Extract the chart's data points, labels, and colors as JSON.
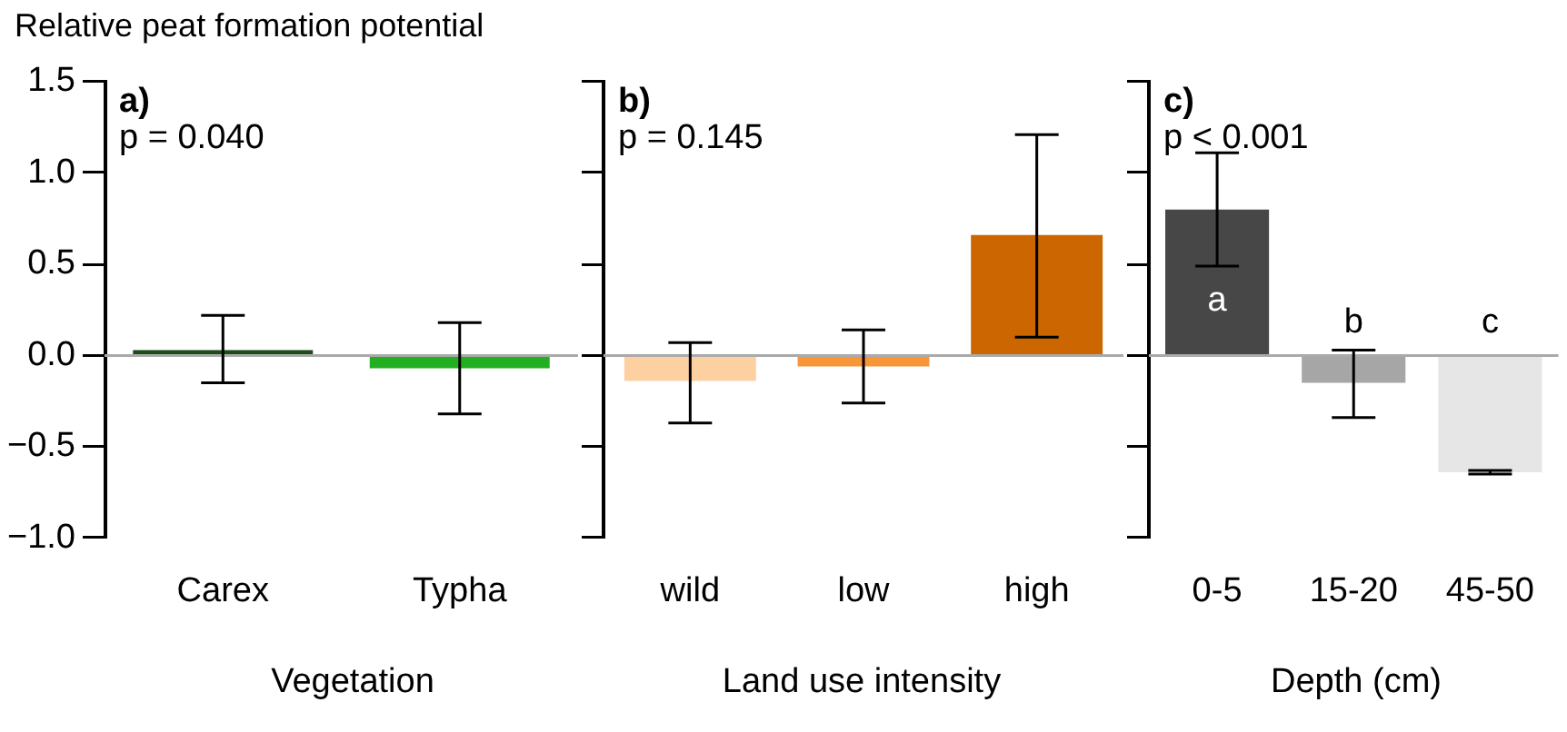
{
  "chart_data": [
    {
      "type": "bar",
      "ylabel": "Relative peat formation potential",
      "xlabel": "Vegetation",
      "categories": [
        "Carex",
        "Typha"
      ],
      "values": [
        0.03,
        -0.07
      ],
      "colors": [
        "#1b4d1b",
        "#22b022"
      ],
      "errors": [
        [
          -0.15,
          0.22
        ],
        [
          -0.32,
          0.18
        ]
      ],
      "ylim": [
        -1,
        1.5
      ],
      "yticks": [
        {
          "value": -1,
          "label": "−1.0"
        },
        {
          "value": -0.5,
          "label": "−0.5"
        },
        {
          "value": 0,
          "label": "0.0"
        },
        0.5,
        {
          "value": 1,
          "label": "1.0"
        },
        1.5
      ],
      "ref_lines": [
        {
          "axis": "y",
          "value": 0,
          "color": "#aaaaaa"
        }
      ],
      "annotations": [
        "a)",
        "p = 0.040"
      ],
      "grid": false,
      "legend": false
    },
    {
      "type": "bar",
      "xlabel": "Land use intensity",
      "categories": [
        "wild",
        "low",
        "high"
      ],
      "values": [
        -0.14,
        -0.06,
        0.66
      ],
      "colors": [
        "#fdd0a2",
        "#f9963a",
        "#cc6600"
      ],
      "errors": [
        [
          -0.37,
          0.07
        ],
        [
          -0.26,
          0.14
        ],
        [
          0.1,
          1.21
        ]
      ],
      "ylim": [
        -1,
        1.5
      ],
      "yticks": [
        -1,
        -0.5,
        0,
        0.5,
        1,
        1.5
      ],
      "tick_labels": "x",
      "ref_lines": [
        {
          "axis": "y",
          "value": 0,
          "color": "#aaaaaa"
        }
      ],
      "annotations": [
        "b)",
        "p = 0.145"
      ],
      "grid": false,
      "legend": false
    },
    {
      "type": "bar",
      "xlabel": "Depth (cm)",
      "categories": [
        "0-5",
        "15-20",
        "45-50"
      ],
      "values": [
        0.8,
        -0.15,
        -0.64
      ],
      "colors": [
        "#474747",
        "#a6a6a6",
        "#e6e6e6"
      ],
      "errors": [
        [
          0.49,
          1.11
        ],
        [
          -0.34,
          0.03
        ],
        [
          -0.65,
          -0.63
        ]
      ],
      "ylim": [
        -1,
        1.5
      ],
      "yticks": [
        -1,
        -0.5,
        0,
        0.5,
        1,
        1.5
      ],
      "tick_labels": "x",
      "ref_lines": [
        {
          "axis": "y",
          "value": 0,
          "color": "#aaaaaa"
        }
      ],
      "annotations": [
        "c)",
        "p < 0.001",
        "a",
        "b",
        "c"
      ],
      "grid": false,
      "legend": false
    }
  ]
}
